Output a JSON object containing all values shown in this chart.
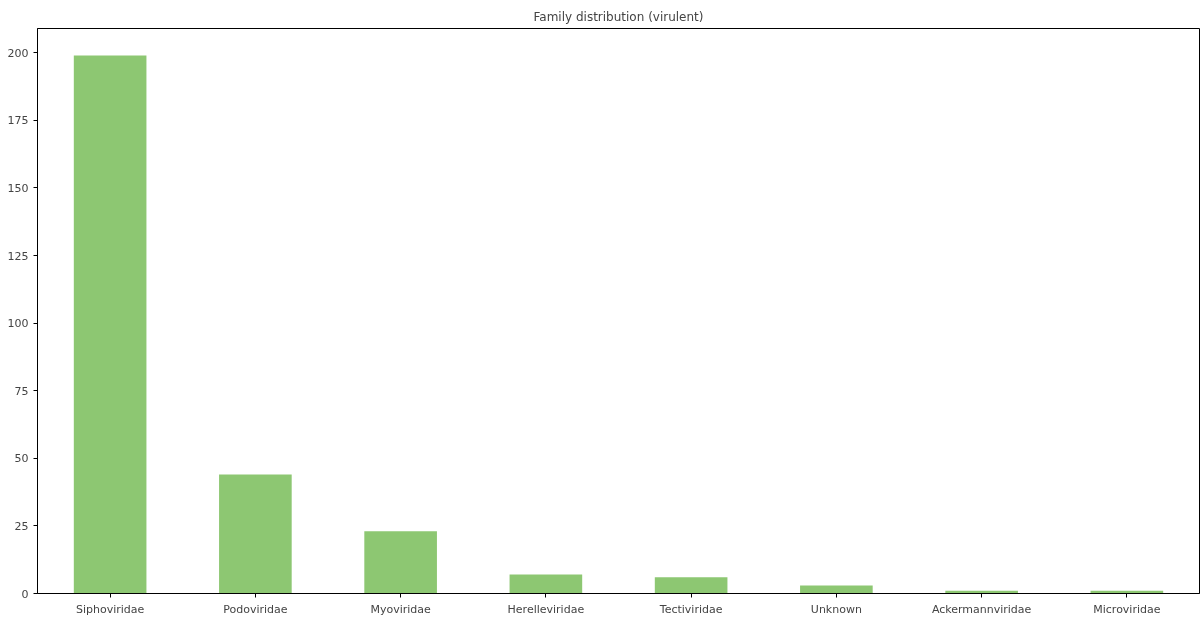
{
  "chart_data": {
    "type": "bar",
    "title": "Family distribution (virulent)",
    "categories": [
      "Siphoviridae",
      "Podoviridae",
      "Myoviridae",
      "Herelleviridae",
      "Tectiviridae",
      "Unknown",
      "Ackermannviridae",
      "Microviridae"
    ],
    "values": [
      199,
      44,
      23,
      7,
      6,
      3,
      1,
      1
    ],
    "color": "#8dc772",
    "ylim": [
      0,
      209
    ],
    "yticks": [
      0,
      25,
      50,
      75,
      100,
      125,
      150,
      175,
      200
    ],
    "grid": false
  }
}
